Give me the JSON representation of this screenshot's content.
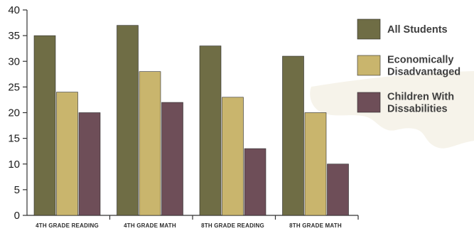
{
  "chart_data": {
    "type": "bar",
    "title": "",
    "xlabel": "",
    "ylabel": "",
    "categories": [
      "4TH GRADE READING",
      "4TH GRADE MATH",
      "8TH GRADE READING",
      "8TH GRADE MATH"
    ],
    "series": [
      {
        "name": "All Students",
        "values": [
          35,
          37,
          33,
          31
        ],
        "color": "#6f6d45"
      },
      {
        "name": "Economically Disadvantaged",
        "values": [
          24,
          28,
          23,
          20
        ],
        "color": "#c9b56d"
      },
      {
        "name": "Children With Dissabilities",
        "values": [
          20,
          22,
          13,
          10
        ],
        "color": "#6e4e58"
      }
    ],
    "legend_lines": [
      [
        "All Students"
      ],
      [
        "Economically",
        "Disadvantaged"
      ],
      [
        "Children With",
        "Dissabilities"
      ]
    ],
    "ylim": [
      0,
      40
    ],
    "yticks": [
      0,
      5,
      10,
      15,
      20,
      25,
      30,
      35,
      40
    ],
    "grid": false,
    "legend_position": "right"
  }
}
